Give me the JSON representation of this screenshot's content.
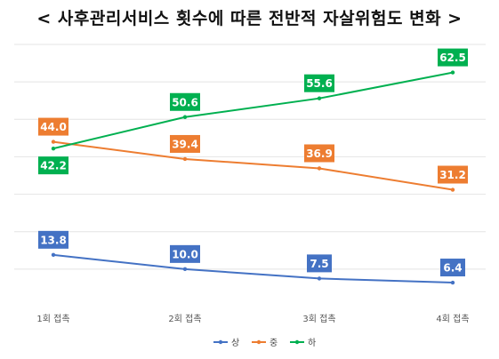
{
  "chart_data": {
    "type": "line",
    "title": "< 사후관리서비스 횟수에 따른 전반적 자살위험도 변화 >",
    "categories": [
      "1회 접촉",
      "2회 접촉",
      "3회 접촉",
      "4회 접촉"
    ],
    "series": [
      {
        "name": "상",
        "color": "#4472C4",
        "values": [
          13.8,
          10.0,
          7.5,
          6.4
        ],
        "labels": [
          "13.8",
          "10.0",
          "7.5",
          "6.4"
        ]
      },
      {
        "name": "중",
        "color": "#ED7D31",
        "values": [
          44.0,
          39.4,
          36.9,
          31.2
        ],
        "labels": [
          "44.0",
          "39.4",
          "36.9",
          "31.2"
        ]
      },
      {
        "name": "하",
        "color": "#00B050",
        "values": [
          42.2,
          50.6,
          55.6,
          62.5
        ],
        "labels": [
          "42.2",
          "50.6",
          "55.6",
          "62.5"
        ]
      }
    ],
    "ylim": [
      0,
      70
    ],
    "grid": true,
    "legend": "bottom"
  }
}
